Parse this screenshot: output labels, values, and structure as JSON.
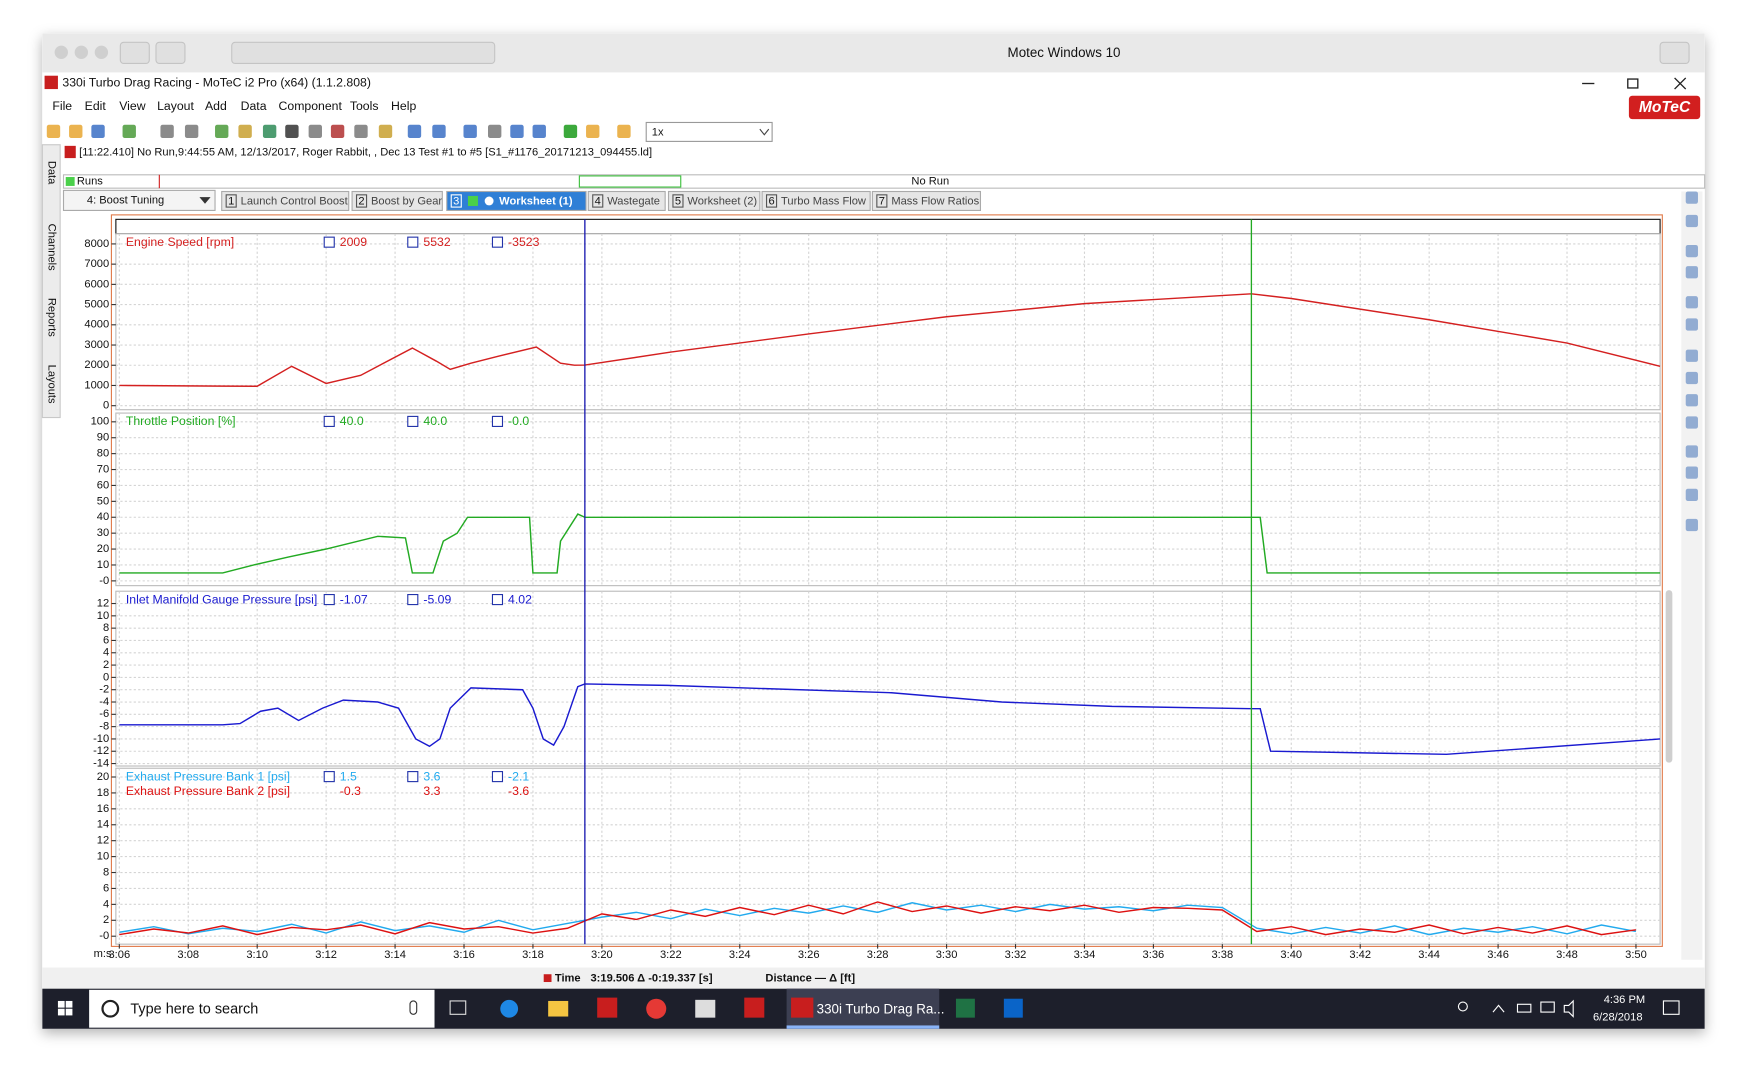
{
  "mac_title": "Motec Windows 10",
  "app_title": "330i Turbo Drag Racing - MoTeC i2 Pro (x64) (1.1.2.808)",
  "menu": [
    "File",
    "Edit",
    "View",
    "Layout",
    "Add",
    "Data",
    "Component",
    "Tools",
    "Help"
  ],
  "logo": "MoTeC",
  "zoom": "1x",
  "run_info": "[11:22.410] No Run,9:44:55 AM, 12/13/2017,  Roger Rabbit, , Dec 13 Test #1 to #5 [S1_#1176_20171213_094455.ld]",
  "side_tabs": [
    "Data",
    "Channels",
    "Reports",
    "Layouts"
  ],
  "runs_label": "Runs",
  "runs_status": "No Run",
  "workbook": "4: Boost Tuning",
  "tabs": [
    {
      "num": "1",
      "label": "Launch Control Boost"
    },
    {
      "num": "2",
      "label": "Boost by Gear"
    },
    {
      "num": "3",
      "label": "Worksheet (1)"
    },
    {
      "num": "4",
      "label": "Wastegate"
    },
    {
      "num": "5",
      "label": "Worksheet (2)"
    },
    {
      "num": "6",
      "label": "Turbo Mass Flow"
    },
    {
      "num": "7",
      "label": "Mass Flow Ratios"
    }
  ],
  "time_axis": {
    "label": "m:s",
    "xlim": [
      185.9,
      230.7
    ],
    "xticks": [
      {
        "value": 186,
        "label": "3:06"
      },
      {
        "value": 188,
        "label": "3:08"
      },
      {
        "value": 190,
        "label": "3:10"
      },
      {
        "value": 192,
        "label": "3:12"
      },
      {
        "value": 194,
        "label": "3:14"
      },
      {
        "value": 196,
        "label": "3:16"
      },
      {
        "value": 198,
        "label": "3:18"
      },
      {
        "value": 200,
        "label": "3:20"
      },
      {
        "value": 202,
        "label": "3:22"
      },
      {
        "value": 204,
        "label": "3:24"
      },
      {
        "value": 206,
        "label": "3:26"
      },
      {
        "value": 208,
        "label": "3:28"
      },
      {
        "value": 210,
        "label": "3:30"
      },
      {
        "value": 212,
        "label": "3:32"
      },
      {
        "value": 214,
        "label": "3:34"
      },
      {
        "value": 216,
        "label": "3:36"
      },
      {
        "value": 218,
        "label": "3:38"
      },
      {
        "value": 220,
        "label": "3:40"
      },
      {
        "value": 222,
        "label": "3:42"
      },
      {
        "value": 224,
        "label": "3:44"
      },
      {
        "value": 226,
        "label": "3:46"
      },
      {
        "value": 228,
        "label": "3:48"
      },
      {
        "value": 230,
        "label": "3:50"
      }
    ],
    "cursors": [
      199.506,
      218.843
    ],
    "cursor_colors": [
      "#1a1ab0",
      "#22aa22"
    ]
  },
  "chart_data": [
    {
      "type": "line",
      "ylim": [
        -200,
        8500
      ],
      "yticks": [
        0,
        1000,
        2000,
        3000,
        4000,
        5000,
        6000,
        7000,
        8000
      ],
      "x": [
        186,
        189,
        190,
        191,
        192,
        193,
        194.5,
        195.2,
        195.6,
        196.2,
        197,
        198.1,
        198.8,
        199.2,
        199.506,
        202,
        206,
        210,
        214,
        218.843,
        220,
        224,
        228,
        230.7
      ],
      "series": [
        {
          "name": "Engine Speed [rpm]",
          "color": "#d42020",
          "cursor_values": [
            "2009",
            "5532",
            "-3523"
          ],
          "values": [
            1000,
            970,
            960,
            1950,
            1100,
            1500,
            2850,
            2200,
            1800,
            2100,
            2450,
            2900,
            2100,
            2000,
            2009,
            2650,
            3550,
            4400,
            5050,
            5532,
            5300,
            4250,
            3100,
            1950
          ]
        }
      ]
    },
    {
      "type": "line",
      "ylim": [
        -3,
        105.5
      ],
      "yticks": [
        {
          "value": 0,
          "label": "-0"
        },
        10,
        20,
        30,
        40,
        50,
        60,
        70,
        80,
        90,
        100
      ],
      "x": [
        186,
        189,
        189.9,
        190.9,
        192,
        193.5,
        194.3,
        194.5,
        195.1,
        195.4,
        195.8,
        196.1,
        197.9,
        198,
        198.7,
        198.8,
        199.3,
        199.506,
        218.843,
        219.1,
        219.3,
        230.7
      ],
      "series": [
        {
          "name": "Throttle Position [%]",
          "color": "#22aa22",
          "cursor_values": [
            "40.0",
            "40.0",
            "-0.0"
          ],
          "values": [
            5,
            5,
            10,
            15,
            20,
            28,
            27,
            5,
            5,
            25,
            30,
            40,
            40,
            5,
            5,
            25,
            42,
            40,
            40,
            40,
            5,
            5
          ]
        }
      ]
    },
    {
      "type": "line",
      "ylim": [
        -14.4,
        14
      ],
      "yticks": [
        -14,
        -12,
        -10,
        -8,
        -6,
        -4,
        -2,
        0,
        2,
        4,
        6,
        8,
        10,
        12
      ],
      "x": [
        186,
        189,
        189.5,
        190.1,
        190.6,
        191.2,
        191.9,
        192.5,
        193.5,
        194.1,
        194.6,
        195,
        195.3,
        195.6,
        196.2,
        197.7,
        198,
        198.3,
        198.6,
        198.9,
        199.3,
        199.506,
        201.9,
        208.4,
        211.6,
        214.8,
        218.843,
        219.1,
        219.4,
        224.5,
        230.7
      ],
      "series": [
        {
          "name": "Inlet Manifold Gauge Pressure [psi]",
          "color": "#1a1ad0",
          "cursor_values": [
            "-1.07",
            "-5.09",
            "4.02"
          ],
          "values": [
            -7.7,
            -7.7,
            -7.5,
            -5.5,
            -5,
            -7,
            -5,
            -3.7,
            -4,
            -5,
            -10,
            -11.2,
            -10,
            -5,
            -1.7,
            -2,
            -5,
            -10,
            -11,
            -8,
            -1.5,
            -1.07,
            -1.3,
            -2.5,
            -4,
            -4.7,
            -5.09,
            -5.09,
            -12,
            -12.5,
            -10
          ]
        }
      ]
    },
    {
      "type": "line",
      "ylim": [
        -1,
        21.1
      ],
      "yticks": [
        {
          "value": 0,
          "label": "-0"
        },
        2,
        4,
        6,
        8,
        10,
        12,
        14,
        16,
        18,
        20
      ],
      "x": [
        186,
        187,
        188,
        189,
        190,
        191,
        192,
        193,
        194,
        195,
        196,
        197,
        198,
        199,
        200,
        201,
        202,
        203,
        204,
        205,
        206,
        207,
        208,
        209,
        210,
        211,
        212,
        213,
        214,
        215,
        216,
        217,
        218,
        219,
        220,
        221,
        222,
        223,
        224,
        225,
        226,
        227,
        228,
        229,
        230
      ],
      "series": [
        {
          "name": "Exhaust Pressure Bank 1 [psi]",
          "color": "#22aaee",
          "cursor_values": [
            "1.5",
            "3.6",
            "-2.1"
          ],
          "values": [
            0.5,
            1.2,
            0.3,
            1.0,
            0.6,
            1.5,
            0.4,
            1.8,
            0.7,
            1.3,
            0.5,
            2.0,
            0.8,
            1.6,
            2.4,
            3.0,
            2.2,
            3.4,
            2.6,
            3.5,
            2.9,
            3.8,
            3.0,
            4.2,
            3.3,
            3.9,
            3.1,
            4.0,
            3.4,
            3.7,
            3.2,
            3.9,
            3.6,
            1.0,
            0.3,
            1.1,
            0.4,
            1.3,
            0.2,
            1.0,
            0.5,
            1.2,
            0.3,
            1.4,
            0.6
          ]
        },
        {
          "name": "Exhaust Pressure Bank 2 [psi]",
          "color": "#dd1111",
          "cursor_values": [
            "-0.3",
            "3.3",
            "-3.6"
          ],
          "values": [
            0.2,
            0.9,
            0.4,
            1.3,
            0.2,
            1.1,
            0.8,
            1.4,
            0.3,
            1.7,
            0.9,
            1.2,
            0.4,
            1.0,
            2.8,
            2.1,
            3.3,
            2.5,
            3.6,
            2.7,
            3.9,
            2.8,
            4.3,
            3.1,
            3.8,
            2.9,
            3.7,
            3.2,
            3.9,
            3.0,
            3.6,
            3.5,
            3.3,
            0.6,
            1.2,
            0.2,
            0.9,
            0.5,
            1.4,
            0.3,
            1.1,
            0.4,
            1.3,
            0.2,
            0.8
          ]
        }
      ]
    }
  ],
  "status": {
    "time_label": "Time",
    "time_value": "3:19.506  Δ -0:19.337 [s]",
    "distance": "Distance  —  Δ  [ft]"
  },
  "taskbar": {
    "search": "Type here to search",
    "app": "330i Turbo Drag Ra...",
    "time": "4:36 PM",
    "date": "6/28/2018"
  }
}
